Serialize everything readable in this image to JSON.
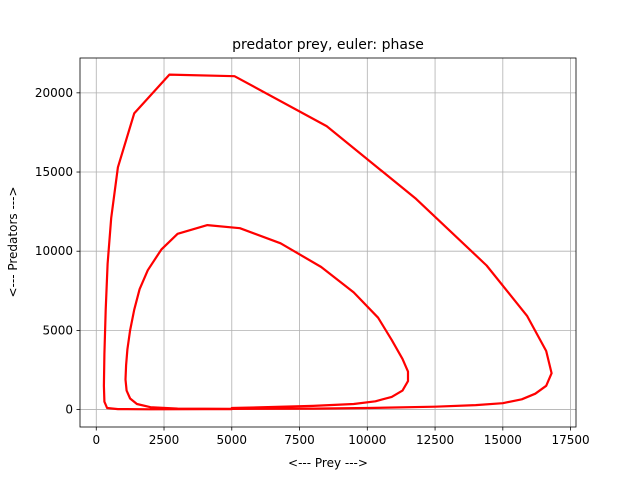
{
  "chart_data": {
    "type": "line",
    "title": "predator prey, euler: phase",
    "xlabel": "<--- Prey --->",
    "ylabel": "<--- Predators --->",
    "xlim": [
      -600,
      17700
    ],
    "ylim": [
      -1100,
      22200
    ],
    "xticks": [
      0,
      2500,
      5000,
      7500,
      10000,
      12500,
      15000,
      17500
    ],
    "yticks": [
      0,
      5000,
      10000,
      15000,
      20000
    ],
    "grid": true,
    "line_color": "#ff0000",
    "series": [
      {
        "values": [
          [
            5000,
            100
          ],
          [
            6500,
            160
          ],
          [
            8000,
            230
          ],
          [
            9500,
            350
          ],
          [
            10300,
            520
          ],
          [
            10900,
            800
          ],
          [
            11300,
            1200
          ],
          [
            11500,
            1800
          ],
          [
            11500,
            2400
          ],
          [
            11300,
            3200
          ],
          [
            10900,
            4400
          ],
          [
            10400,
            5800
          ],
          [
            9500,
            7400
          ],
          [
            8300,
            9000
          ],
          [
            6800,
            10500
          ],
          [
            5300,
            11450
          ],
          [
            4100,
            11650
          ],
          [
            3000,
            11100
          ],
          [
            2400,
            10100
          ],
          [
            1900,
            8800
          ],
          [
            1600,
            7600
          ],
          [
            1400,
            6300
          ],
          [
            1250,
            5000
          ],
          [
            1150,
            3800
          ],
          [
            1100,
            2800
          ],
          [
            1080,
            1900
          ],
          [
            1120,
            1200
          ],
          [
            1250,
            700
          ],
          [
            1500,
            350
          ],
          [
            2000,
            150
          ],
          [
            3000,
            60
          ],
          [
            5000,
            40
          ],
          [
            8000,
            60
          ],
          [
            10000,
            100
          ],
          [
            12500,
            180
          ],
          [
            14000,
            280
          ],
          [
            15000,
            400
          ],
          [
            15700,
            650
          ],
          [
            16200,
            1000
          ],
          [
            16600,
            1500
          ],
          [
            16800,
            2300
          ],
          [
            16600,
            3700
          ],
          [
            15900,
            5900
          ],
          [
            14400,
            9100
          ],
          [
            11800,
            13300
          ],
          [
            8500,
            17900
          ],
          [
            5100,
            21050
          ],
          [
            2700,
            21150
          ],
          [
            1400,
            18700
          ],
          [
            800,
            15300
          ],
          [
            550,
            12100
          ],
          [
            420,
            9200
          ],
          [
            350,
            6300
          ],
          [
            300,
            3500
          ],
          [
            280,
            1500
          ],
          [
            300,
            500
          ],
          [
            400,
            100
          ],
          [
            800,
            30
          ],
          [
            2000,
            20
          ],
          [
            4000,
            25
          ],
          [
            5000,
            30
          ]
        ]
      }
    ]
  }
}
